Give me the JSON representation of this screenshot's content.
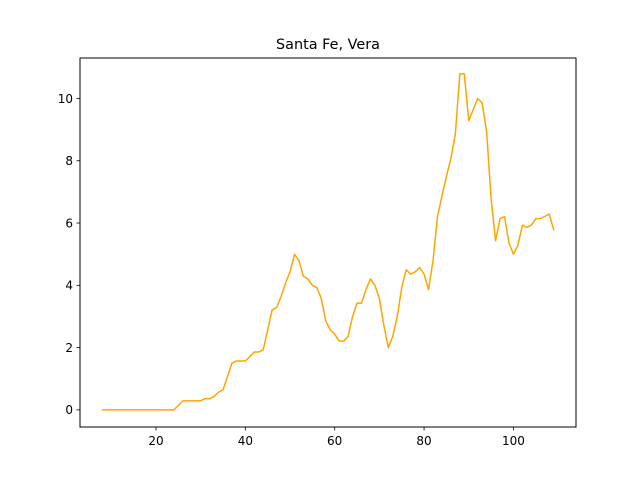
{
  "chart_data": {
    "type": "line",
    "title": "Santa Fe, Vera",
    "xlabel": "",
    "ylabel": "",
    "xlim": [
      3,
      114
    ],
    "ylim": [
      -0.55,
      11.3
    ],
    "xticks": [
      20,
      40,
      60,
      80,
      100
    ],
    "yticks": [
      0,
      2,
      4,
      6,
      8,
      10
    ],
    "grid": false,
    "legend": "none",
    "series": [
      {
        "color": "#ffa500",
        "x": [
          8,
          9,
          10,
          11,
          12,
          13,
          14,
          15,
          16,
          17,
          18,
          19,
          20,
          21,
          22,
          23,
          24,
          25,
          26,
          27,
          28,
          29,
          30,
          31,
          32,
          33,
          34,
          35,
          36,
          37,
          38,
          39,
          40,
          41,
          42,
          43,
          44,
          45,
          46,
          47,
          48,
          49,
          50,
          51,
          52,
          53,
          54,
          55,
          56,
          57,
          58,
          59,
          60,
          61,
          62,
          63,
          64,
          65,
          66,
          67,
          68,
          69,
          70,
          71,
          72,
          73,
          74,
          75,
          76,
          77,
          78,
          79,
          80,
          81,
          82,
          83,
          84,
          85,
          86,
          87,
          88,
          89,
          90,
          91,
          92,
          93,
          94,
          95,
          96,
          97,
          98,
          99,
          100,
          101,
          102,
          103,
          104,
          105,
          106,
          107,
          108,
          109
        ],
        "y": [
          0,
          0,
          0,
          0,
          0,
          0,
          0,
          0,
          0,
          0,
          0,
          0,
          0,
          0,
          0,
          0,
          0,
          0.14,
          0.29,
          0.29,
          0.29,
          0.29,
          0.29,
          0.36,
          0.36,
          0.43,
          0.57,
          0.64,
          1.07,
          1.5,
          1.57,
          1.57,
          1.57,
          1.71,
          1.86,
          1.86,
          1.93,
          2.57,
          3.21,
          3.29,
          3.64,
          4.07,
          4.43,
          5.0,
          4.79,
          4.29,
          4.21,
          4.0,
          3.93,
          3.57,
          2.86,
          2.57,
          2.43,
          2.21,
          2.21,
          2.36,
          3.0,
          3.43,
          3.43,
          3.86,
          4.21,
          4.0,
          3.57,
          2.71,
          2.0,
          2.36,
          3.0,
          3.93,
          4.5,
          4.36,
          4.43,
          4.57,
          4.36,
          3.86,
          4.79,
          6.21,
          6.86,
          7.5,
          8.07,
          8.86,
          10.79,
          10.79,
          9.29,
          9.64,
          10.0,
          9.86,
          8.93,
          6.79,
          5.43,
          6.14,
          6.21,
          5.36,
          5.0,
          5.29,
          5.93,
          5.86,
          5.93,
          6.14,
          6.14,
          6.21,
          6.29,
          5.79
        ]
      }
    ]
  }
}
